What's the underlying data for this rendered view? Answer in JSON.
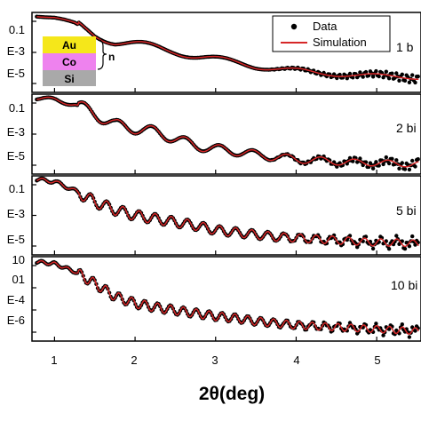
{
  "chart_data": {
    "type": "line",
    "xlabel": "2θ(deg)",
    "xlim": [
      0.72,
      5.55
    ],
    "x_ticks": [
      "1",
      "2",
      "3",
      "4",
      "5"
    ],
    "log_y": true,
    "legend": {
      "placement": "top-right",
      "entries": [
        {
          "name": "Data",
          "marker": "dot",
          "color": "#000000"
        },
        {
          "name": "Simulation",
          "marker": "line",
          "color": "#d62728"
        }
      ]
    },
    "inset": {
      "layers": [
        {
          "label": "Au",
          "color": "#f5e71a"
        },
        {
          "label": "Co",
          "color": "#ee82ee"
        },
        {
          "label": "Si",
          "color": "#a9a9a9"
        }
      ],
      "bracket_label": "n"
    },
    "panels": [
      {
        "label": "1 b",
        "y_ticks": [
          "0.1",
          "E-3",
          "E-5"
        ],
        "ylim_exp": [
          -6.5,
          0.5
        ],
        "baseline_exp": -5.4,
        "series": [
          {
            "name": "Data",
            "x": [
              0.75,
              1.0,
              1.25,
              1.5,
              1.75,
              2.0,
              2.25,
              2.5,
              2.75,
              3.0,
              3.25,
              3.5,
              3.75,
              4.0,
              4.25,
              4.5,
              4.75,
              5.0,
              5.25,
              5.5
            ],
            "y_exp": [
              0.3,
              0.0,
              -0.5,
              -1.4,
              -2.0,
              -2.3,
              -2.6,
              -2.9,
              -3.3,
              -3.6,
              -3.9,
              -4.2,
              -4.4,
              -4.6,
              -4.8,
              -4.9,
              -5.0,
              -5.05,
              -5.1,
              -5.2
            ]
          },
          {
            "name": "Simulation",
            "x": [
              0.75,
              1.0,
              1.25,
              1.5,
              1.75,
              2.0,
              2.25,
              2.5,
              2.75,
              3.0,
              3.25,
              3.5,
              3.75,
              4.0,
              4.25,
              4.5,
              4.75,
              5.0,
              5.25,
              5.5
            ],
            "y_exp": [
              0.3,
              0.0,
              -0.5,
              -1.4,
              -2.0,
              -2.3,
              -2.6,
              -2.9,
              -3.3,
              -3.6,
              -3.9,
              -4.2,
              -4.4,
              -4.6,
              -4.8,
              -4.9,
              -5.0,
              -5.05,
              -5.1,
              -5.2
            ]
          }
        ]
      },
      {
        "label": "2 bi",
        "y_ticks": [
          "0.1",
          "E-3",
          "E-5"
        ],
        "ylim_exp": [
          -6.5,
          0.5
        ],
        "baseline_exp": -5.6,
        "series": [
          {
            "name": "Data",
            "x": [
              0.75,
              1.0,
              1.25,
              1.5,
              1.75,
              2.0,
              2.25,
              2.5,
              2.75,
              3.0,
              3.25,
              3.5,
              3.75,
              4.0,
              4.25,
              4.5,
              4.75,
              5.0,
              5.25,
              5.5
            ],
            "y_exp": [
              0.2,
              0.0,
              -0.4,
              -1.2,
              -2.2,
              -2.5,
              -2.8,
              -3.4,
              -4.0,
              -4.3,
              -4.5,
              -4.8,
              -5.0,
              -5.2,
              -5.3,
              -5.4,
              -5.5,
              -5.5,
              -5.6,
              -5.6
            ]
          },
          {
            "name": "Simulation",
            "x": [
              0.75,
              1.0,
              1.25,
              1.5,
              1.75,
              2.0,
              2.25,
              2.5,
              2.75,
              3.0,
              3.25,
              3.5,
              3.75,
              4.0,
              4.25,
              4.5,
              4.75,
              5.0,
              5.25,
              5.5
            ],
            "y_exp": [
              0.2,
              0.0,
              -0.4,
              -1.2,
              -2.2,
              -2.5,
              -2.8,
              -3.4,
              -4.0,
              -4.3,
              -4.5,
              -4.8,
              -5.0,
              -5.2,
              -5.3,
              -5.4,
              -5.5,
              -5.5,
              -5.6,
              -5.6
            ]
          }
        ]
      },
      {
        "label": "5 bi",
        "y_ticks": [
          "0.1",
          "E-3",
          "E-5"
        ],
        "ylim_exp": [
          -6.5,
          0.5
        ],
        "baseline_exp": -5.5,
        "series": [
          {
            "name": "Data",
            "x": [
              0.75,
              1.0,
              1.25,
              1.5,
              1.75,
              2.0,
              2.25,
              2.5,
              2.75,
              3.0,
              3.25,
              3.5,
              3.75,
              4.0,
              4.25,
              4.5,
              4.75,
              5.0,
              5.25,
              5.5
            ],
            "y_exp": [
              0.2,
              0.0,
              -0.8,
              -1.8,
              -2.5,
              -3.0,
              -3.3,
              -3.6,
              -3.9,
              -4.3,
              -4.5,
              -4.7,
              -4.9,
              -5.0,
              -5.1,
              -5.2,
              -5.3,
              -5.4,
              -5.4,
              -5.5
            ]
          },
          {
            "name": "Simulation",
            "x": [
              0.75,
              1.0,
              1.25,
              1.5,
              1.75,
              2.0,
              2.25,
              2.5,
              2.75,
              3.0,
              3.25,
              3.5,
              3.75,
              4.0,
              4.25,
              4.5,
              4.75,
              5.0,
              5.25,
              5.5
            ],
            "y_exp": [
              0.2,
              0.0,
              -0.8,
              -1.8,
              -2.5,
              -3.0,
              -3.3,
              -3.6,
              -3.9,
              -4.3,
              -4.5,
              -4.7,
              -4.9,
              -5.0,
              -5.1,
              -5.2,
              -5.3,
              -5.4,
              -5.4,
              -5.5
            ]
          }
        ]
      },
      {
        "label": "10 bi",
        "y_ticks": [
          "10",
          "01",
          "E-4",
          "E-6"
        ],
        "ylim_exp": [
          -7.0,
          1.5
        ],
        "baseline_exp": -6.0,
        "series": [
          {
            "name": "Data",
            "x": [
              0.75,
              1.0,
              1.25,
              1.5,
              1.75,
              2.0,
              2.25,
              2.5,
              2.75,
              3.0,
              3.25,
              3.5,
              3.75,
              4.0,
              4.25,
              4.5,
              4.75,
              5.0,
              5.25,
              5.5
            ],
            "y_exp": [
              1.0,
              0.8,
              0.0,
              -1.2,
              -2.5,
              -3.2,
              -3.6,
              -3.9,
              -4.2,
              -4.5,
              -4.7,
              -5.0,
              -5.2,
              -5.4,
              -5.5,
              -5.6,
              -5.7,
              -5.8,
              -5.9,
              -6.0
            ]
          },
          {
            "name": "Simulation",
            "x": [
              0.75,
              1.0,
              1.25,
              1.5,
              1.75,
              2.0,
              2.25,
              2.5,
              2.75,
              3.0,
              3.25,
              3.5,
              3.75,
              4.0,
              4.25,
              4.5,
              4.75,
              5.0,
              5.25,
              5.5
            ],
            "y_exp": [
              1.0,
              0.8,
              0.0,
              -1.2,
              -2.5,
              -3.2,
              -3.6,
              -3.9,
              -4.2,
              -4.5,
              -4.7,
              -5.0,
              -5.2,
              -5.4,
              -5.5,
              -5.6,
              -5.7,
              -5.8,
              -5.9,
              -6.0
            ]
          }
        ]
      }
    ]
  }
}
